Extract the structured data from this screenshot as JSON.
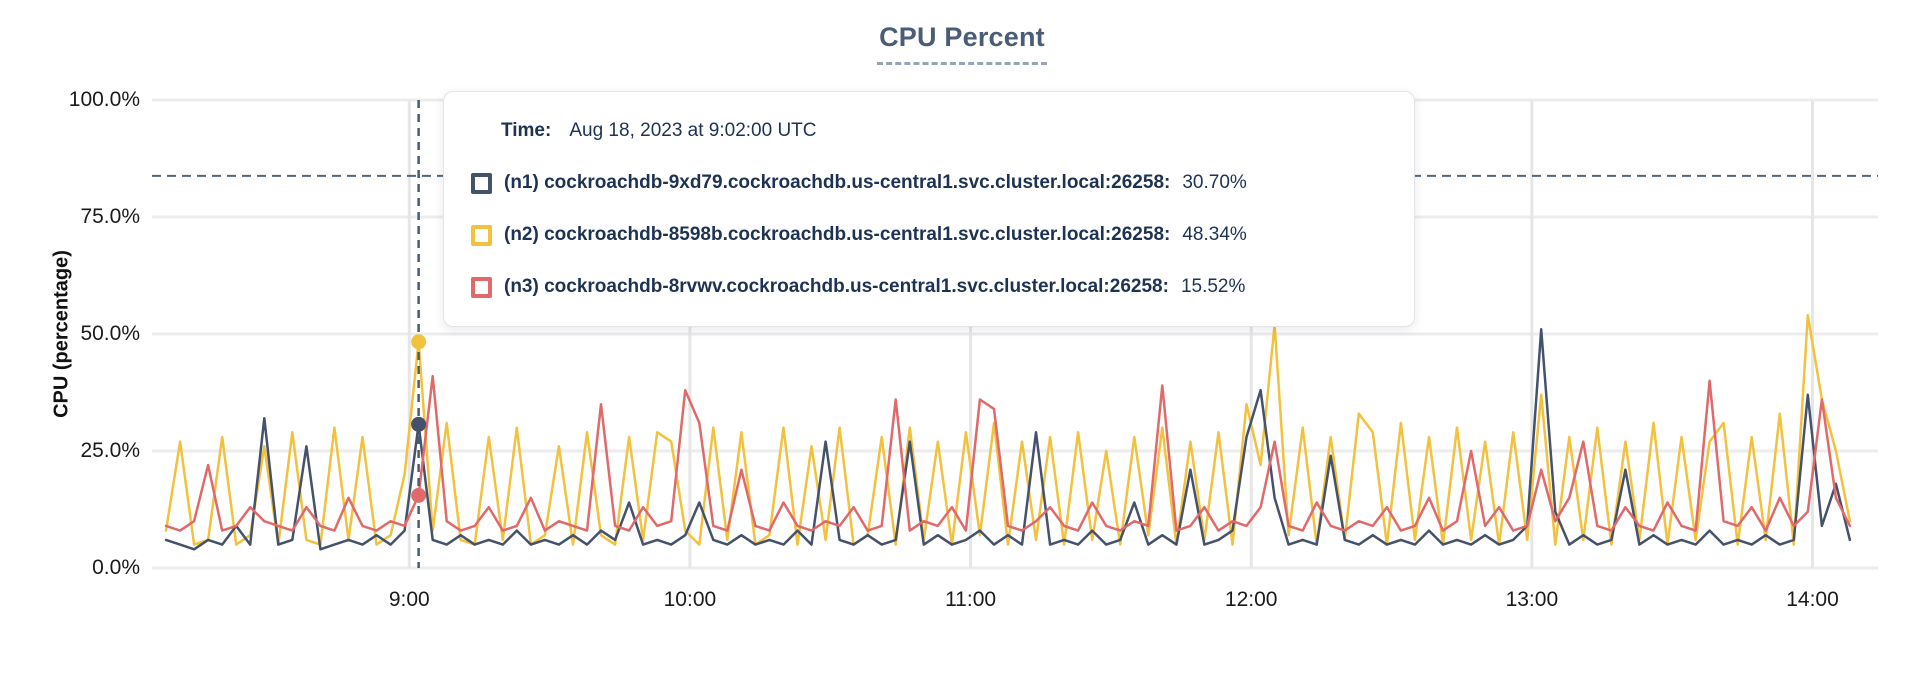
{
  "title": "CPU Percent",
  "y_axis": {
    "title": "CPU (percentage)",
    "max": 100,
    "tick_values": [
      0,
      25,
      50,
      75,
      100
    ],
    "tick_labels": [
      "0.0%",
      "25.0%",
      "50.0%",
      "75.0%",
      "100.0%"
    ]
  },
  "x_axis": {
    "tick_minutes": [
      540,
      600,
      660,
      720,
      780,
      840
    ],
    "tick_labels": [
      "9:00",
      "10:00",
      "11:00",
      "12:00",
      "13:00",
      "14:00"
    ],
    "range_minutes": [
      485,
      854
    ]
  },
  "tooltip": {
    "time_label": "Time:",
    "time_value": "Aug 18, 2023 at 9:02:00 UTC"
  },
  "colors": {
    "background": "#FFFFFF",
    "title": "#4B5C77",
    "axis_text": "#1A1A1A",
    "tooltip_text": "#1E3253",
    "grid": "#ECECEC",
    "grid_vertical": "#E6E6E6",
    "threshold_line": "#51657E",
    "hover_line": "#4A5B74"
  },
  "chart_data": {
    "type": "line",
    "title": "CPU Percent",
    "ylabel": "CPU (percentage)",
    "ylim": [
      0,
      100
    ],
    "grid": true,
    "x_start_minutes": 488,
    "x_step_minutes": 3,
    "hover_minutes": 542,
    "hover_time": "Aug 18, 2023 at 9:02:00 UTC",
    "threshold_percent": 83.8,
    "series": [
      {
        "id": "n1",
        "legend_label": "(n1) cockroachdb-9xd79.cockroachdb.us-central1.svc.cluster.local:26258:",
        "hover_value": "30.70%",
        "hover_percent": 30.7,
        "color": "#45526B",
        "values": [
          6,
          5,
          4,
          6,
          5,
          9,
          5,
          32,
          5,
          6,
          26,
          4,
          5,
          6,
          5,
          7,
          5,
          8,
          30.7,
          6,
          5,
          7,
          5,
          6,
          5,
          8,
          5,
          6,
          5,
          7,
          5,
          8,
          6,
          14,
          5,
          6,
          5,
          7,
          14,
          6,
          5,
          7,
          5,
          6,
          5,
          8,
          5,
          27,
          6,
          5,
          7,
          5,
          6,
          27,
          5,
          7,
          5,
          6,
          8,
          5,
          7,
          5,
          29,
          5,
          6,
          5,
          8,
          5,
          6,
          14,
          5,
          7,
          5,
          21,
          5,
          6,
          8,
          28,
          38,
          15,
          5,
          6,
          5,
          24,
          6,
          5,
          7,
          5,
          6,
          5,
          8,
          5,
          6,
          5,
          7,
          5,
          6,
          9,
          51,
          12,
          5,
          7,
          5,
          6,
          21,
          5,
          7,
          5,
          6,
          5,
          8,
          5,
          6,
          5,
          7,
          5,
          6,
          37,
          9,
          18,
          6
        ]
      },
      {
        "id": "n2",
        "legend_label": "(n2) cockroachdb-8598b.cockroachdb.us-central1.svc.cluster.local:26258:",
        "hover_value": "48.34%",
        "hover_percent": 48.34,
        "color": "#F2C13E",
        "values": [
          8,
          27,
          5,
          6,
          28,
          5,
          7,
          26,
          5,
          29,
          6,
          5,
          30,
          6,
          28,
          5,
          7,
          20,
          48.34,
          8,
          31,
          6,
          5,
          28,
          6,
          30,
          5,
          7,
          26,
          5,
          29,
          7,
          5,
          28,
          6,
          29,
          27,
          8,
          5,
          30,
          6,
          29,
          5,
          7,
          30,
          5,
          26,
          6,
          30,
          5,
          7,
          28,
          5,
          30,
          6,
          27,
          5,
          29,
          7,
          31,
          5,
          27,
          6,
          28,
          5,
          29,
          6,
          25,
          5,
          28,
          7,
          30,
          5,
          27,
          6,
          29,
          5,
          35,
          22,
          52,
          7,
          30,
          5,
          28,
          6,
          33,
          29,
          5,
          31,
          6,
          28,
          5,
          30,
          6,
          27,
          5,
          29,
          6,
          37,
          5,
          28,
          6,
          30,
          5,
          27,
          6,
          31,
          5,
          28,
          6,
          27,
          31,
          5,
          28,
          6,
          33,
          5,
          54,
          36,
          25,
          10
        ]
      },
      {
        "id": "n3",
        "legend_label": "(n3) cockroachdb-8rvwv.cockroachdb.us-central1.svc.cluster.local:26258:",
        "hover_value": "15.52%",
        "hover_percent": 15.52,
        "color": "#E0696A",
        "values": [
          9,
          8,
          10,
          22,
          8,
          9,
          13,
          10,
          9,
          8,
          13,
          9,
          8,
          15,
          9,
          8,
          10,
          9,
          15.52,
          41,
          10,
          8,
          9,
          13,
          8,
          9,
          15,
          8,
          10,
          9,
          8,
          35,
          9,
          8,
          13,
          9,
          10,
          38,
          31,
          9,
          8,
          21,
          9,
          8,
          14,
          9,
          8,
          10,
          9,
          13,
          8,
          9,
          36,
          8,
          10,
          9,
          13,
          8,
          36,
          34,
          9,
          8,
          10,
          13,
          9,
          8,
          14,
          9,
          8,
          10,
          9,
          39,
          8,
          9,
          13,
          8,
          10,
          9,
          13,
          27,
          9,
          8,
          14,
          9,
          8,
          10,
          9,
          13,
          8,
          9,
          15,
          8,
          10,
          25,
          9,
          13,
          8,
          9,
          21,
          10,
          15,
          27,
          9,
          8,
          13,
          9,
          8,
          14,
          9,
          8,
          40,
          10,
          9,
          13,
          8,
          15,
          9,
          12,
          36,
          15,
          9
        ]
      }
    ]
  }
}
